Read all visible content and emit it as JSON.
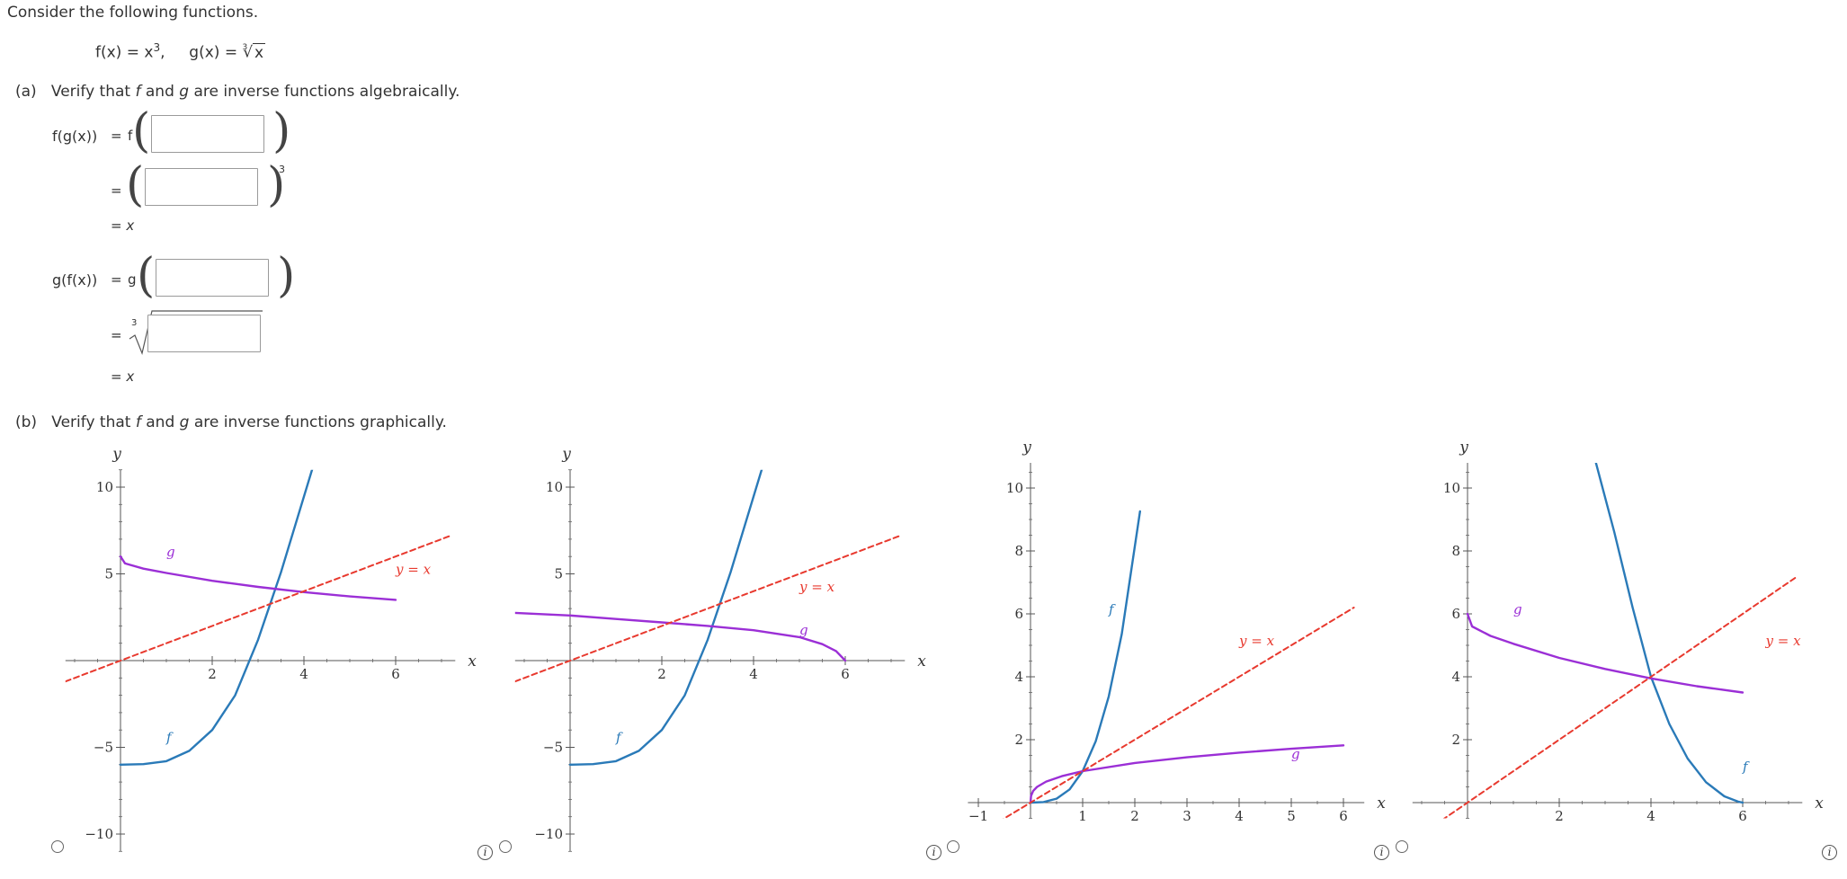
{
  "intro": "Consider the following functions.",
  "functions": {
    "f_lhs": "f(x) = x",
    "f_exp": "3",
    "sep": ",",
    "g_lhs": "g(x) = ",
    "g_index": "3",
    "g_rad": "x"
  },
  "part_a": {
    "label": "(a)",
    "text_1": "Verify that ",
    "text_f": "f",
    "text_2": " and ",
    "text_g": "g",
    "text_3": " are inverse functions algebraically.",
    "fg": {
      "lhs": "f(g(x))",
      "eq": "=",
      "fn": "f",
      "input_1": "",
      "input_2": "",
      "power": "3",
      "result": "= x"
    },
    "gf": {
      "lhs": "g(f(x))",
      "eq": "=",
      "fn": "g",
      "input_1": "",
      "root_index": "3",
      "input_2": "",
      "result": "= x"
    }
  },
  "part_b": {
    "label": "(b)",
    "text_1": "Verify that ",
    "text_f": "f",
    "text_2": " and ",
    "text_g": "g",
    "text_3": " are inverse functions graphically.",
    "info_glyph": "i"
  },
  "chart_data": [
    {
      "type": "line",
      "xlabel": "x",
      "ylabel": "y",
      "xlim": [
        -1.2,
        7.3
      ],
      "ylim": [
        -11,
        11
      ],
      "xticks": [
        2,
        4,
        6
      ],
      "yticks": [
        -10,
        -5,
        5,
        10
      ],
      "xtick_labels": [
        "2",
        "4",
        "6"
      ],
      "ytick_labels": [
        "−10",
        "−5",
        "5",
        "10"
      ],
      "series": [
        {
          "name": "f",
          "color": "#2a7ab8",
          "x": [
            0,
            0.5,
            1,
            1.5,
            2,
            2.5,
            3,
            3.5,
            4.2
          ],
          "y": [
            -6,
            -5.97,
            -5.8,
            -5.2,
            -4,
            -2,
            1.2,
            5.1,
            11.2
          ]
        },
        {
          "name": "g",
          "color": "#9b2fd6",
          "x": [
            0,
            0.1,
            0.5,
            1,
            2,
            3,
            4,
            5,
            6
          ],
          "y": [
            6,
            5.6,
            5.3,
            5.05,
            4.6,
            4.25,
            3.95,
            3.7,
            3.5
          ]
        },
        {
          "name": "y = x",
          "color": "#e8392e",
          "dashed": true,
          "x": [
            -1.2,
            7.2
          ],
          "y": [
            -1.2,
            7.2
          ]
        }
      ],
      "labels": [
        {
          "text": "g",
          "x": 1,
          "y": 6
        },
        {
          "text": "y = x",
          "x": 6,
          "y": 5
        },
        {
          "text": "f",
          "x": 1,
          "y": -4.7
        }
      ],
      "radio_selected": false,
      "has_info": false
    },
    {
      "type": "line",
      "xlabel": "x",
      "ylabel": "y",
      "xlim": [
        -1.2,
        7.3
      ],
      "ylim": [
        -11,
        11
      ],
      "xticks": [
        2,
        4,
        6
      ],
      "yticks": [
        -10,
        -5,
        5,
        10
      ],
      "xtick_labels": [
        "2",
        "4",
        "6"
      ],
      "ytick_labels": [
        "−10",
        "−5",
        "5",
        "10"
      ],
      "series": [
        {
          "name": "f",
          "color": "#2a7ab8",
          "x": [
            0,
            0.5,
            1,
            1.5,
            2,
            2.5,
            3,
            3.5,
            4.2
          ],
          "y": [
            -6,
            -5.97,
            -5.8,
            -5.2,
            -4,
            -2,
            1.2,
            5.1,
            11.2
          ]
        },
        {
          "name": "g",
          "color": "#9b2fd6",
          "x": [
            -1.2,
            0,
            1,
            2,
            3,
            4,
            5,
            5.5,
            5.8,
            6
          ],
          "y": [
            2.75,
            2.6,
            2.4,
            2.2,
            2,
            1.75,
            1.35,
            0.95,
            0.55,
            0
          ]
        },
        {
          "name": "y = x",
          "color": "#e8392e",
          "dashed": true,
          "x": [
            -1.2,
            7.2
          ],
          "y": [
            -1.2,
            7.2
          ]
        }
      ],
      "labels": [
        {
          "text": "y = x",
          "x": 5,
          "y": 4
        },
        {
          "text": "g",
          "x": 5,
          "y": 1.5
        },
        {
          "text": "f",
          "x": 1,
          "y": -4.7
        }
      ],
      "radio_selected": false,
      "has_info": true
    },
    {
      "type": "line",
      "xlabel": "x",
      "ylabel": "y",
      "xlim": [
        -1.2,
        6.4
      ],
      "ylim": [
        -0.5,
        10.8
      ],
      "xticks": [
        -1,
        1,
        2,
        3,
        4,
        5,
        6
      ],
      "yticks": [
        2,
        4,
        6,
        8,
        10
      ],
      "xtick_labels": [
        "−1",
        "1",
        "2",
        "3",
        "4",
        "5",
        "6"
      ],
      "ytick_labels": [
        "2",
        "4",
        "6",
        "8",
        "10"
      ],
      "series": [
        {
          "name": "f",
          "color": "#2a7ab8",
          "x": [
            0,
            0.25,
            0.5,
            0.75,
            1,
            1.25,
            1.5,
            1.75,
            2.1
          ],
          "y": [
            0,
            0.016,
            0.125,
            0.42,
            1,
            1.95,
            3.375,
            5.36,
            9.26
          ]
        },
        {
          "name": "g",
          "color": "#9b2fd6",
          "x": [
            0,
            0.01,
            0.05,
            0.125,
            0.3,
            0.6,
            1,
            2,
            3,
            4,
            5,
            6
          ],
          "y": [
            0,
            0.215,
            0.37,
            0.5,
            0.67,
            0.84,
            1,
            1.26,
            1.44,
            1.59,
            1.71,
            1.82
          ]
        },
        {
          "name": "y = x",
          "color": "#e8392e",
          "dashed": true,
          "x": [
            -1.2,
            6.2
          ],
          "y": [
            -1.2,
            6.2
          ]
        }
      ],
      "labels": [
        {
          "text": "f",
          "x": 1.5,
          "y": 6
        },
        {
          "text": "y = x",
          "x": 4,
          "y": 5
        },
        {
          "text": "g",
          "x": 5,
          "y": 1.4
        }
      ],
      "radio_selected": false,
      "has_info": true
    },
    {
      "type": "line",
      "xlabel": "x",
      "ylabel": "y",
      "xlim": [
        -1.2,
        7.3
      ],
      "ylim": [
        -0.5,
        10.8
      ],
      "xticks": [
        2,
        4,
        6
      ],
      "yticks": [
        2,
        4,
        6,
        8,
        10
      ],
      "xtick_labels": [
        "2",
        "4",
        "6"
      ],
      "ytick_labels": [
        "2",
        "4",
        "6",
        "8",
        "10"
      ],
      "series": [
        {
          "name": "f",
          "color": "#2a7ab8",
          "x": [
            2.8,
            3.2,
            3.6,
            4,
            4.4,
            4.8,
            5.2,
            5.6,
            5.9,
            6
          ],
          "y": [
            10.8,
            8.6,
            6.2,
            4,
            2.5,
            1.4,
            0.65,
            0.2,
            0.03,
            0
          ]
        },
        {
          "name": "g",
          "color": "#9b2fd6",
          "x": [
            0,
            0.1,
            0.5,
            1,
            2,
            3,
            4,
            5,
            6
          ],
          "y": [
            6,
            5.6,
            5.3,
            5.05,
            4.6,
            4.25,
            3.95,
            3.7,
            3.5
          ]
        },
        {
          "name": "y = x",
          "color": "#e8392e",
          "dashed": true,
          "x": [
            -1.2,
            7.2
          ],
          "y": [
            -1.2,
            7.2
          ]
        }
      ],
      "labels": [
        {
          "text": "g",
          "x": 1,
          "y": 6
        },
        {
          "text": "y = x",
          "x": 6.5,
          "y": 5
        },
        {
          "text": "f",
          "x": 6,
          "y": 1
        }
      ],
      "radio_selected": false,
      "has_info": true
    }
  ]
}
